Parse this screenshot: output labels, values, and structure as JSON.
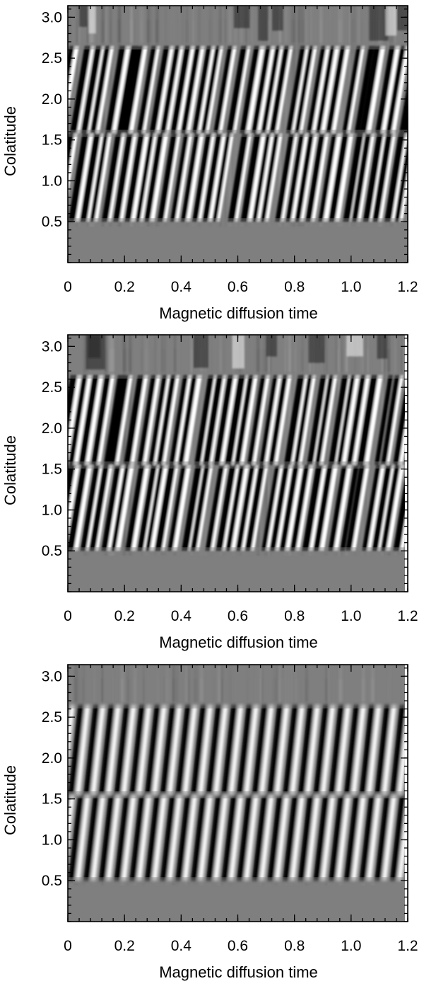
{
  "chart_data": [
    {
      "type": "heatmap",
      "title": "",
      "xlabel": "Magnetic diffusion time",
      "ylabel": "Colatitude",
      "xlim": [
        0,
        1.2
      ],
      "ylim": [
        0,
        3.1416
      ],
      "xticks": [
        0,
        0.2,
        0.4,
        0.6,
        0.8,
        1.0,
        1.2
      ],
      "xtick_labels": [
        "0",
        "0.2",
        "0.4",
        "0.6",
        "0.8",
        "1.0",
        "1.2"
      ],
      "yticks": [
        0.5,
        1.0,
        1.5,
        2.0,
        2.5,
        3.0
      ],
      "ytick_labels": [
        "0.5",
        "1.0",
        "1.5",
        "2.0",
        "2.5",
        "3.0"
      ],
      "colormap": "grayscale",
      "colors": {
        "low": "#000000",
        "mid": "#7f7f7f",
        "high": "#ffffff"
      },
      "pattern": "irregular",
      "band_lows": [
        0.5,
        1.58
      ],
      "band_highs": [
        1.58,
        2.65
      ],
      "stripe_count": 30,
      "tilt_north": 0.052,
      "tilt_south": 0.05,
      "data_end": 1.2
    },
    {
      "type": "heatmap",
      "title": "",
      "xlabel": "Magnetic diffusion time",
      "ylabel": "Colatitude",
      "xlim": [
        0,
        1.2
      ],
      "ylim": [
        0,
        3.1416
      ],
      "xticks": [
        0,
        0.2,
        0.4,
        0.6,
        0.8,
        1.0,
        1.2
      ],
      "xtick_labels": [
        "0",
        "0.2",
        "0.4",
        "0.6",
        "0.8",
        "1.0",
        "1.2"
      ],
      "yticks": [
        0.5,
        1.0,
        1.5,
        2.0,
        2.5,
        3.0
      ],
      "ytick_labels": [
        "0.5",
        "1.0",
        "1.5",
        "2.0",
        "2.5",
        "3.0"
      ],
      "colormap": "grayscale",
      "colors": {
        "low": "#000000",
        "mid": "#7f7f7f",
        "high": "#ffffff"
      },
      "pattern": "irregular",
      "band_lows": [
        0.5,
        1.55
      ],
      "band_highs": [
        1.55,
        2.65
      ],
      "stripe_count": 30,
      "tilt_north": 0.05,
      "tilt_south": 0.05,
      "data_end": 1.19
    },
    {
      "type": "heatmap",
      "title": "",
      "xlabel": "Magnetic diffusion time",
      "ylabel": "Colatitude",
      "xlim": [
        0,
        1.2
      ],
      "ylim": [
        0,
        3.1416
      ],
      "xticks": [
        0,
        0.2,
        0.4,
        0.6,
        0.8,
        1.0,
        1.2
      ],
      "xtick_labels": [
        "0",
        "0.2",
        "0.4",
        "0.6",
        "0.8",
        "1.0",
        "1.2"
      ],
      "yticks": [
        0.5,
        1.0,
        1.5,
        2.0,
        2.5,
        3.0
      ],
      "ytick_labels": [
        "0.5",
        "1.0",
        "1.5",
        "2.0",
        "2.5",
        "3.0"
      ],
      "colormap": "grayscale",
      "colors": {
        "low": "#000000",
        "mid": "#7f7f7f",
        "high": "#ffffff"
      },
      "pattern": "regular",
      "band_lows": [
        0.5,
        1.55
      ],
      "band_highs": [
        1.55,
        2.65
      ],
      "stripe_count": 22,
      "tilt_north": 0.035,
      "tilt_south": 0.035,
      "data_end": 1.19
    }
  ]
}
